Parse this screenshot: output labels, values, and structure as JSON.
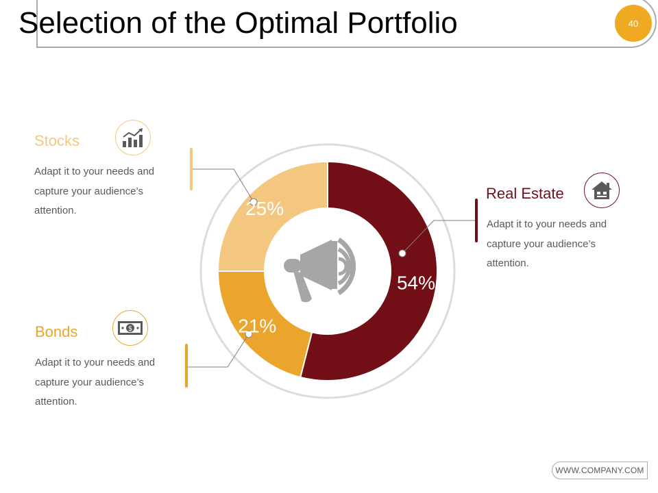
{
  "page": {
    "title": "Selection of the Optimal Portfolio",
    "page_number": "40",
    "footer": "WWW.COMPANY.COM"
  },
  "colors": {
    "real_estate": "#720f16",
    "stocks": "#f3c77f",
    "bonds": "#eba52c",
    "accent": "#f0aa22"
  },
  "panels": {
    "stocks": {
      "label": "Stocks",
      "description": "Adapt it to your needs and capture your audience’s attention.",
      "icon": "bar-chart-trend-icon"
    },
    "bonds": {
      "label": "Bonds",
      "description": "Adapt it to your needs and capture your audience’s attention.",
      "icon": "money-bill-icon"
    },
    "real_estate": {
      "label": "Real Estate",
      "description": "Adapt it to your needs and capture your audience’s attention.",
      "icon": "house-icon"
    }
  },
  "center_icon": "megaphone-icon",
  "chart_data": {
    "type": "pie",
    "donut": true,
    "slices": [
      {
        "name": "Real Estate",
        "value": 54,
        "label": "54%",
        "color": "#720f16"
      },
      {
        "name": "Bonds",
        "value": 21,
        "label": "21%",
        "color": "#eba52c"
      },
      {
        "name": "Stocks",
        "value": 25,
        "label": "25%",
        "color": "#f3c77f"
      }
    ]
  }
}
